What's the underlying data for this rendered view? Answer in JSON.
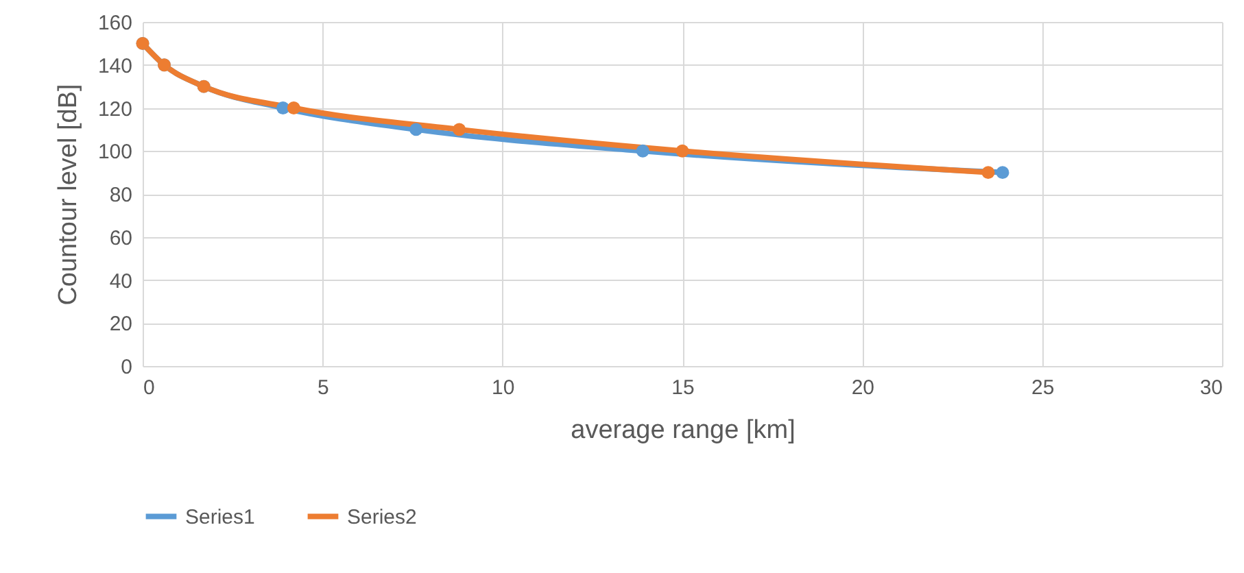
{
  "chart_data": {
    "type": "line",
    "xlabel": "average range [km]",
    "ylabel": "Countour level [dB]",
    "xlim": [
      0,
      30
    ],
    "xticks": [
      0,
      5,
      10,
      15,
      20,
      25,
      30
    ],
    "ylim": [
      0,
      160
    ],
    "yticks": [
      0,
      20,
      40,
      60,
      80,
      100,
      120,
      140,
      160
    ],
    "grid": true,
    "legend": "bottom",
    "marker": "circle",
    "series": [
      {
        "name": "Series1",
        "color": "#5b9bd5",
        "x": [
          0,
          0.6,
          1.7,
          3.9,
          7.6,
          13.9,
          23.9
        ],
        "values": [
          150,
          140,
          130,
          120,
          110,
          100,
          90
        ]
      },
      {
        "name": "Series2",
        "color": "#ed7d31",
        "x": [
          0,
          0.6,
          1.7,
          4.2,
          8.8,
          15,
          23.5
        ],
        "values": [
          150,
          140,
          130,
          120,
          110,
          100,
          90
        ]
      }
    ]
  }
}
